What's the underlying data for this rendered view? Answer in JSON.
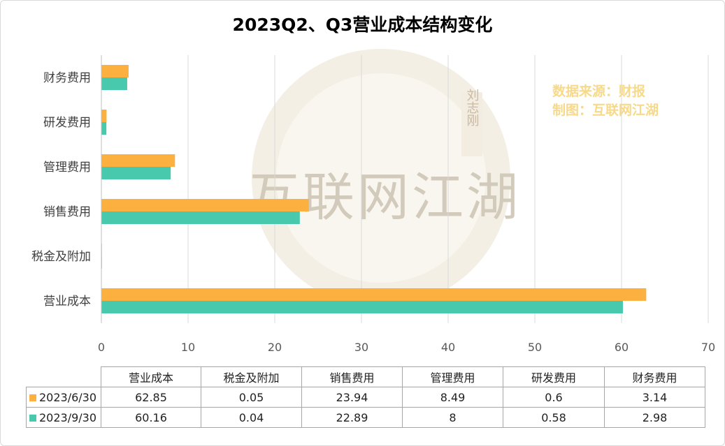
{
  "chart_data": {
    "type": "bar",
    "orientation": "horizontal",
    "title": "2023Q2、Q3营业成本结构变化",
    "categories": [
      "营业成本",
      "税金及附加",
      "销售费用",
      "管理费用",
      "研发费用",
      "财务费用"
    ],
    "series": [
      {
        "name": "2023/6/30",
        "color": "#fcb040",
        "values": [
          62.85,
          0.05,
          23.94,
          8.49,
          0.6,
          3.14
        ]
      },
      {
        "name": "2023/9/30",
        "color": "#48c9ad",
        "values": [
          60.16,
          0.04,
          22.89,
          8,
          0.58,
          2.98
        ]
      }
    ],
    "xlim": [
      0,
      70
    ],
    "xticks": [
      0,
      10,
      20,
      30,
      40,
      50,
      60,
      70
    ],
    "grid": "vertical",
    "legend": "data-table-below",
    "table_values": [
      [
        "62.85",
        "0.05",
        "23.94",
        "8.49",
        "0.6",
        "3.14"
      ],
      [
        "60.16",
        "0.04",
        "22.89",
        "8",
        "0.58",
        "2.98"
      ]
    ]
  },
  "source_note": {
    "line1": "数据来源：财报",
    "line2": "制图：互联网江湖"
  },
  "watermark": {
    "text": "互联网江湖",
    "seal": "刘志刚"
  }
}
